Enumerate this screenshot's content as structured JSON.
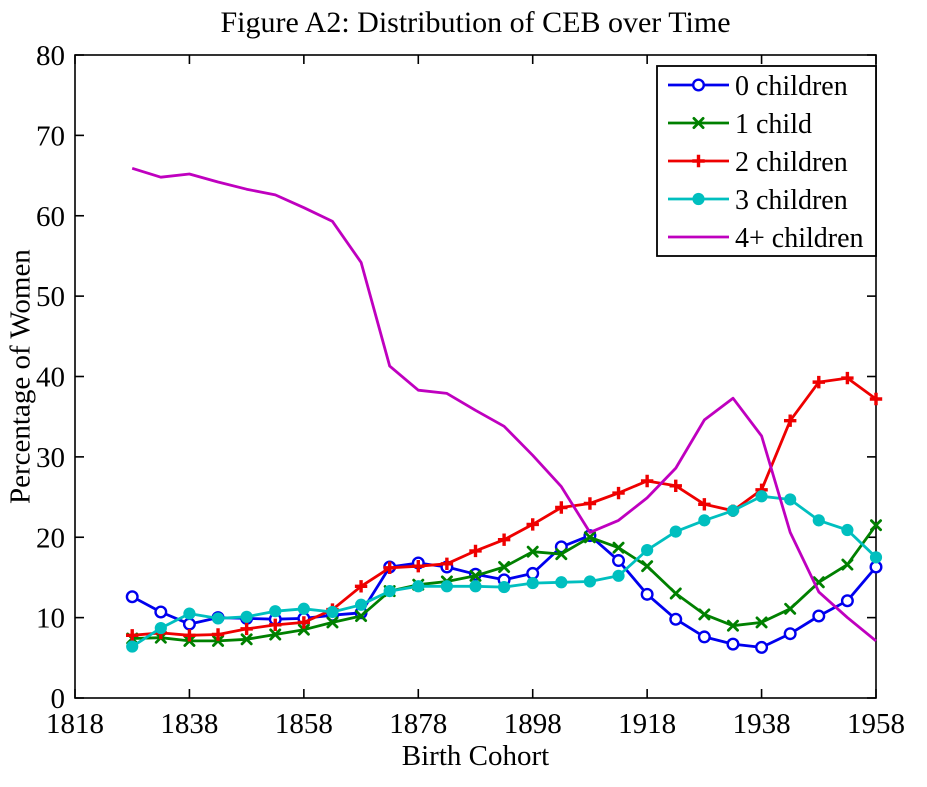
{
  "chart_data": {
    "type": "line",
    "title": "Figure A2: Distribution of CEB over Time",
    "xlabel": "Birth Cohort",
    "ylabel": "Percentage of Women",
    "xlim": [
      1818,
      1958
    ],
    "ylim": [
      0,
      80
    ],
    "xticks": [
      1818,
      1838,
      1858,
      1878,
      1898,
      1918,
      1938,
      1958
    ],
    "yticks": [
      0,
      10,
      20,
      30,
      40,
      50,
      60,
      70,
      80
    ],
    "grid": false,
    "legend_position": "top-right",
    "x": [
      1828,
      1833,
      1838,
      1843,
      1848,
      1853,
      1858,
      1863,
      1868,
      1873,
      1878,
      1883,
      1888,
      1893,
      1898,
      1903,
      1908,
      1913,
      1918,
      1923,
      1928,
      1933,
      1938,
      1943,
      1948,
      1953,
      1958
    ],
    "series": [
      {
        "name": "0 children",
        "color": "#0000EE",
        "marker": "circle-open",
        "values": [
          12.6,
          10.7,
          9.2,
          10.0,
          9.9,
          9.8,
          9.9,
          10.3,
          10.6,
          16.3,
          16.8,
          16.3,
          15.4,
          14.7,
          15.5,
          18.8,
          20.2,
          17.1,
          12.9,
          9.8,
          7.6,
          6.7,
          6.3,
          8.0,
          10.2,
          12.1,
          16.3
        ]
      },
      {
        "name": "1 child",
        "color": "#008000",
        "marker": "x",
        "values": [
          7.4,
          7.5,
          7.1,
          7.1,
          7.3,
          7.9,
          8.5,
          9.4,
          10.2,
          13.3,
          14.1,
          14.5,
          15.2,
          16.3,
          18.2,
          17.9,
          20.0,
          18.7,
          16.4,
          13.0,
          10.4,
          9.0,
          9.4,
          11.1,
          14.4,
          16.6,
          21.5
        ]
      },
      {
        "name": "2 children",
        "color": "#EE0000",
        "marker": "plus",
        "values": [
          7.8,
          8.1,
          7.8,
          7.9,
          8.6,
          9.1,
          9.4,
          11.0,
          13.9,
          16.2,
          16.4,
          16.7,
          18.3,
          19.7,
          21.6,
          23.7,
          24.2,
          25.5,
          27.0,
          26.4,
          24.1,
          23.3,
          25.9,
          34.5,
          39.3,
          39.8,
          37.2
        ]
      },
      {
        "name": "3 children",
        "color": "#00BFBF",
        "marker": "dot",
        "values": [
          6.4,
          8.7,
          10.5,
          9.9,
          10.1,
          10.8,
          11.1,
          10.7,
          11.6,
          13.3,
          13.9,
          13.9,
          13.9,
          13.8,
          14.3,
          14.4,
          14.5,
          15.2,
          18.4,
          20.7,
          22.1,
          23.3,
          25.1,
          24.7,
          22.1,
          20.9,
          17.5
        ]
      },
      {
        "name": "4+ children",
        "color": "#BF00BF",
        "marker": "none",
        "values": [
          65.9,
          64.8,
          65.2,
          64.2,
          63.3,
          62.6,
          61.0,
          59.3,
          54.2,
          41.3,
          38.3,
          37.9,
          35.8,
          33.8,
          30.2,
          26.3,
          20.6,
          22.1,
          24.9,
          28.6,
          34.6,
          37.3,
          32.6,
          20.6,
          13.2,
          10.0,
          7.1
        ]
      }
    ]
  }
}
